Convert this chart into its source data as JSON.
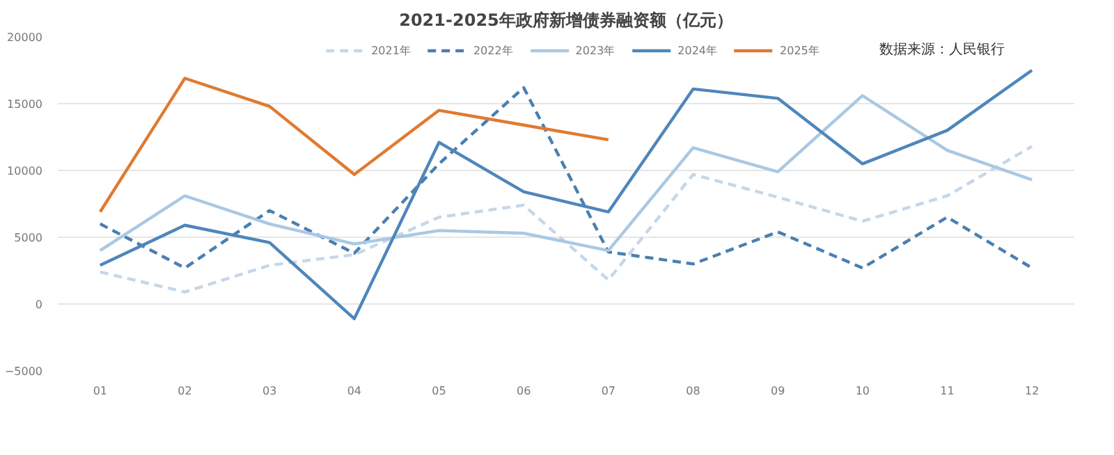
{
  "chart_data": {
    "type": "line",
    "title": "2021-2025年政府新增债券融资额（亿元）",
    "categories": [
      "01",
      "02",
      "03",
      "04",
      "05",
      "06",
      "07",
      "08",
      "09",
      "10",
      "11",
      "12"
    ],
    "series": [
      {
        "name": "2021年",
        "color": "#c5d7e8",
        "line_style": "dashed",
        "values": [
          2400,
          900,
          2900,
          3700,
          6500,
          7400,
          1800,
          9700,
          8000,
          6200,
          8100,
          11800
        ]
      },
      {
        "name": "2022年",
        "color": "#4a7fb0",
        "line_style": "dashed",
        "values": [
          6000,
          2700,
          7000,
          3800,
          10500,
          16200,
          3900,
          3000,
          5400,
          2700,
          6500,
          2700
        ]
      },
      {
        "name": "2023年",
        "color": "#a9c8e3",
        "line_style": "solid",
        "values": [
          4000,
          8100,
          6000,
          4500,
          5500,
          5300,
          4000,
          11700,
          9900,
          15600,
          11500,
          9300
        ]
      },
      {
        "name": "2024年",
        "color": "#4f86ba",
        "line_style": "solid",
        "values": [
          2900,
          5900,
          4600,
          -1100,
          12100,
          8400,
          6900,
          16100,
          15400,
          10500,
          13000,
          17500
        ]
      },
      {
        "name": "2025年",
        "color": "#e07a30",
        "line_style": "solid",
        "values": [
          6900,
          16900,
          14800,
          9700,
          14500,
          13400,
          12300,
          null,
          null,
          null,
          null,
          null
        ]
      }
    ],
    "ylim": [
      -5000,
      20000
    ],
    "yticks": [
      -5000,
      0,
      5000,
      10000,
      15000,
      20000
    ],
    "grid": "y",
    "legend": "top",
    "marker": "none",
    "annotations": [
      "数据来源：人民银行"
    ]
  }
}
